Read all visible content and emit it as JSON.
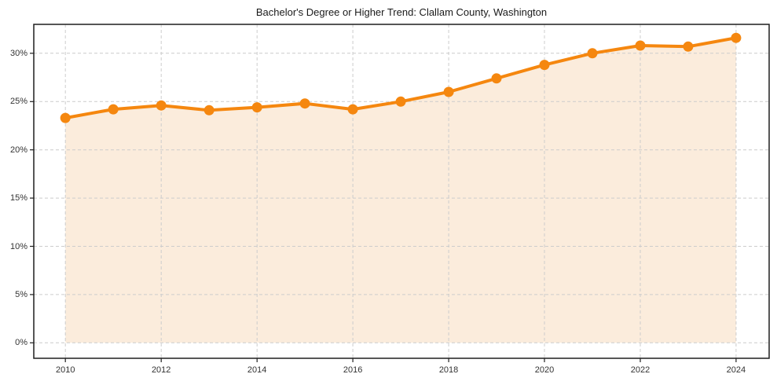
{
  "chart_data": {
    "type": "line",
    "title": "Bachelor's Degree or Higher Trend: Clallam County, Washington",
    "x": [
      2010,
      2011,
      2012,
      2013,
      2014,
      2015,
      2016,
      2017,
      2018,
      2019,
      2020,
      2021,
      2022,
      2023,
      2024
    ],
    "series": [
      {
        "name": "Bachelor's degree or higher (%)",
        "values": [
          23.3,
          24.2,
          24.6,
          24.1,
          24.4,
          24.8,
          24.2,
          25.0,
          26.0,
          27.4,
          28.8,
          30.0,
          30.8,
          30.7,
          31.6
        ]
      }
    ],
    "xlabel": "",
    "ylabel": "",
    "xticks": [
      2010,
      2012,
      2014,
      2016,
      2018,
      2020,
      2022,
      2024
    ],
    "xtick_labels": [
      "2010",
      "2012",
      "2014",
      "2016",
      "2018",
      "2020",
      "2022",
      "2024"
    ],
    "yticks": [
      0,
      5,
      10,
      15,
      20,
      25,
      30
    ],
    "ytick_labels": [
      "0%",
      "5%",
      "10%",
      "15%",
      "20%",
      "25%",
      "30%"
    ],
    "xlim": [
      2009.34,
      2024.69
    ],
    "ylim": [
      -1.6,
      33.0
    ],
    "grid": true,
    "grid_style": "dashed",
    "legend": "none",
    "area_baseline": 0,
    "colors": {
      "line": "#f5870f",
      "marker": "#f5870f",
      "area_fill": "#fbecdc",
      "gridline": "#cccccc",
      "spine": "#1f1f1f",
      "tick_text": "#333333",
      "title_text": "#1a1a1a",
      "background": "#ffffff"
    }
  }
}
